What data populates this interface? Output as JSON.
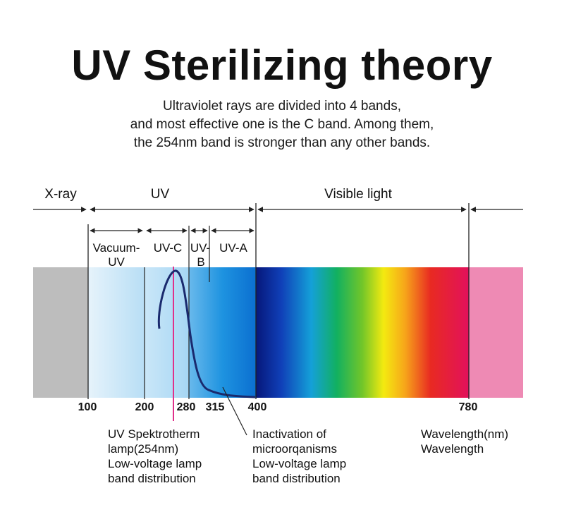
{
  "title": "UV Sterilizing theory",
  "subtitle_lines": [
    "Ultraviolet rays are divided into 4 bands,",
    "and most effective one is the C band. Among them,",
    "the 254nm band is stronger than any other bands."
  ],
  "regions": {
    "xray": "X-ray",
    "uv": "UV",
    "visible": "Visible light"
  },
  "bands": {
    "vacuum_uv_line1": "Vacuum-",
    "vacuum_uv_line2": "UV",
    "uvc": "UV-C",
    "uvb_line1": "UV-",
    "uvb_line2": "B",
    "uva": "UV-A"
  },
  "ticks": [
    "100",
    "200",
    "280",
    "315",
    "400",
    "780"
  ],
  "annotations": {
    "lamp": [
      "UV Spektrotherm",
      "lamp(254nm)",
      "Low-voltage lamp",
      "band distribution"
    ],
    "inactivation": [
      "Inactivation of",
      "microorqanisms",
      "Low-voltage lamp",
      "band distribution"
    ],
    "wavelength": [
      "Wavelength(nm)",
      "Wavelength"
    ]
  },
  "colors": {
    "xray_band": "#bdbdbd",
    "infrared_band": "#ee8ab4",
    "lamp_line": "#e0308a",
    "curve": "#1a2a6e"
  }
}
